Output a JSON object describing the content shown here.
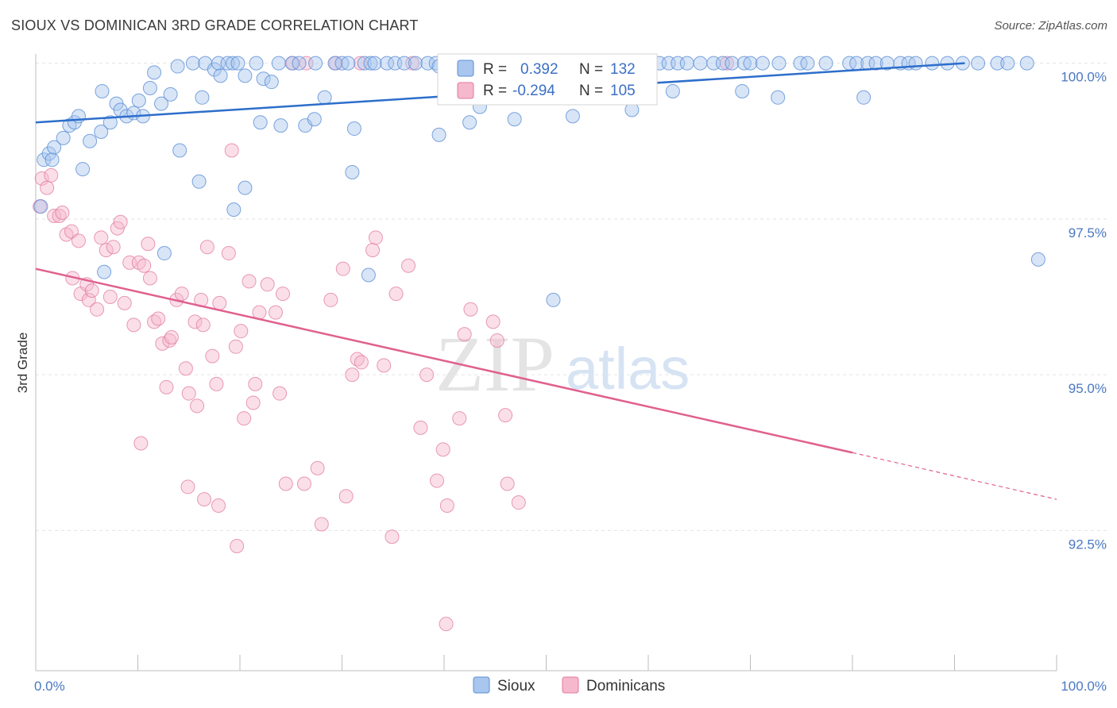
{
  "header": {
    "title": "SIOUX VS DOMINICAN 3RD GRADE CORRELATION CHART",
    "source": "Source: ZipAtlas.com"
  },
  "watermark": {
    "zip": "ZIP",
    "atlas": "atlas"
  },
  "legend_box": {
    "r_label": "R =",
    "n_label": "N =",
    "rows": [
      {
        "r": "0.392",
        "n": "132"
      },
      {
        "r": "-0.294",
        "n": "105"
      }
    ]
  },
  "bottom_legend": [
    "Sioux",
    "Dominicans"
  ],
  "chart_data": {
    "type": "scatter",
    "title": "SIOUX VS DOMINICAN 3RD GRADE CORRELATION CHART",
    "xlabel": "",
    "ylabel": "3rd Grade",
    "xlim": [
      0,
      100
    ],
    "ylim": [
      90.25,
      100.25
    ],
    "x_tick_labels": [
      "0.0%",
      "100.0%"
    ],
    "y_ticks": [
      92.5,
      95.0,
      97.5,
      100.0
    ],
    "y_tick_labels": [
      "92.5%",
      "95.0%",
      "97.5%",
      "100.0%"
    ],
    "grid": true,
    "legend_position": "top-center",
    "colors": {
      "sioux": "#5b8fd6",
      "sioux_fill": "#a9c6ee",
      "sioux_line": "#2d6ecb",
      "dominicans": "#e07aa0",
      "dominicans_fill": "#f6b8cc",
      "dominicans_line": "#e0608e"
    },
    "series": [
      {
        "name": "Sioux",
        "r": 0.392,
        "n": 132,
        "trend": {
          "x": [
            0,
            91
          ],
          "y": [
            99.05,
            100.0
          ]
        },
        "points": [
          [
            0.5,
            97.7
          ],
          [
            0.8,
            98.45
          ],
          [
            1.3,
            98.55
          ],
          [
            1.6,
            98.45
          ],
          [
            1.8,
            98.65
          ],
          [
            2.7,
            98.8
          ],
          [
            3.3,
            99.0
          ],
          [
            3.8,
            99.05
          ],
          [
            4.2,
            99.15
          ],
          [
            4.6,
            98.3
          ],
          [
            5.3,
            98.75
          ],
          [
            6.5,
            99.55
          ],
          [
            6.4,
            98.9
          ],
          [
            7.3,
            99.05
          ],
          [
            7.9,
            99.35
          ],
          [
            8.3,
            99.25
          ],
          [
            8.9,
            99.15
          ],
          [
            9.6,
            99.2
          ],
          [
            10.1,
            99.4
          ],
          [
            10.5,
            99.15
          ],
          [
            11.2,
            99.6
          ],
          [
            11.6,
            99.85
          ],
          [
            12.3,
            99.35
          ],
          [
            13.2,
            99.5
          ],
          [
            13.9,
            99.95
          ],
          [
            14.1,
            98.6
          ],
          [
            15.4,
            100.0
          ],
          [
            16.3,
            99.45
          ],
          [
            16.6,
            100.0
          ],
          [
            17.5,
            99.9
          ],
          [
            17.9,
            100.0
          ],
          [
            18.1,
            99.8
          ],
          [
            18.8,
            100.0
          ],
          [
            19.3,
            100.0
          ],
          [
            19.8,
            100.0
          ],
          [
            20.5,
            99.8
          ],
          [
            21.6,
            100.0
          ],
          [
            22.3,
            99.75
          ],
          [
            23.1,
            99.7
          ],
          [
            23.8,
            100.0
          ],
          [
            25.1,
            100.0
          ],
          [
            25.8,
            100.0
          ],
          [
            26.4,
            99.0
          ],
          [
            27.4,
            100.0
          ],
          [
            28.3,
            99.45
          ],
          [
            29.3,
            100.0
          ],
          [
            30.0,
            100.0
          ],
          [
            30.6,
            100.0
          ],
          [
            31.2,
            98.95
          ],
          [
            32.2,
            100.0
          ],
          [
            32.8,
            100.0
          ],
          [
            33.2,
            100.0
          ],
          [
            34.4,
            100.0
          ],
          [
            35.2,
            100.0
          ],
          [
            36.1,
            100.0
          ],
          [
            37.2,
            100.0
          ],
          [
            38.4,
            100.0
          ],
          [
            39.2,
            100.0
          ],
          [
            39.5,
            99.95
          ],
          [
            40.1,
            100.0
          ],
          [
            40.9,
            100.0
          ],
          [
            41.5,
            100.0
          ],
          [
            42.4,
            100.0
          ],
          [
            43.7,
            100.0
          ],
          [
            44.4,
            100.0
          ],
          [
            45.1,
            100.0
          ],
          [
            45.9,
            100.0
          ],
          [
            47.2,
            100.0
          ],
          [
            47.8,
            100.0
          ],
          [
            48.5,
            100.0
          ],
          [
            49.1,
            100.0
          ],
          [
            49.9,
            100.0
          ],
          [
            50.7,
            100.0
          ],
          [
            51.5,
            100.0
          ],
          [
            52.1,
            100.0
          ],
          [
            53.3,
            100.0
          ],
          [
            54.1,
            100.0
          ],
          [
            55.0,
            100.0
          ],
          [
            55.8,
            100.0
          ],
          [
            56.6,
            100.0
          ],
          [
            57.2,
            100.0
          ],
          [
            58.4,
            100.0
          ],
          [
            59.3,
            100.0
          ],
          [
            60.2,
            100.0
          ],
          [
            61.1,
            100.0
          ],
          [
            62.0,
            100.0
          ],
          [
            62.9,
            100.0
          ],
          [
            63.8,
            100.0
          ],
          [
            65.1,
            100.0
          ],
          [
            66.4,
            100.0
          ],
          [
            67.3,
            100.0
          ],
          [
            68.2,
            100.0
          ],
          [
            69.4,
            100.0
          ],
          [
            70.0,
            100.0
          ],
          [
            71.2,
            100.0
          ],
          [
            72.8,
            100.0
          ],
          [
            74.9,
            100.0
          ],
          [
            75.6,
            100.0
          ],
          [
            77.4,
            100.0
          ],
          [
            79.7,
            100.0
          ],
          [
            80.4,
            100.0
          ],
          [
            81.5,
            100.0
          ],
          [
            82.3,
            100.0
          ],
          [
            83.4,
            100.0
          ],
          [
            84.7,
            100.0
          ],
          [
            85.5,
            100.0
          ],
          [
            86.2,
            100.0
          ],
          [
            87.8,
            100.0
          ],
          [
            89.3,
            100.0
          ],
          [
            90.8,
            100.0
          ],
          [
            92.3,
            100.0
          ],
          [
            94.2,
            100.0
          ],
          [
            95.2,
            100.0
          ],
          [
            97.1,
            100.0
          ],
          [
            22.0,
            99.05
          ],
          [
            24.0,
            99.0
          ],
          [
            27.3,
            99.1
          ],
          [
            31.0,
            98.25
          ],
          [
            16.0,
            98.1
          ],
          [
            20.5,
            98.0
          ],
          [
            19.4,
            97.65
          ],
          [
            12.6,
            96.95
          ],
          [
            6.7,
            96.65
          ],
          [
            32.6,
            96.6
          ],
          [
            50.7,
            96.2
          ],
          [
            43.5,
            99.3
          ],
          [
            46.9,
            99.1
          ],
          [
            42.5,
            99.05
          ],
          [
            52.6,
            99.15
          ],
          [
            53.8,
            99.45
          ],
          [
            62.4,
            99.55
          ],
          [
            58.4,
            99.25
          ],
          [
            69.2,
            99.55
          ],
          [
            72.7,
            99.45
          ],
          [
            81.1,
            99.45
          ],
          [
            98.2,
            96.85
          ],
          [
            39.5,
            98.85
          ],
          [
            48.7,
            99.5
          ]
        ]
      },
      {
        "name": "Dominicans",
        "r": -0.294,
        "n": 105,
        "trend": {
          "x": [
            0,
            80
          ],
          "y": [
            96.7,
            93.75
          ]
        },
        "trend_dashed": {
          "x": [
            80,
            100
          ],
          "y": [
            93.75,
            93.0
          ]
        },
        "points": [
          [
            0.4,
            97.7
          ],
          [
            0.6,
            98.15
          ],
          [
            1.1,
            98.0
          ],
          [
            1.5,
            98.2
          ],
          [
            1.8,
            97.55
          ],
          [
            2.3,
            97.55
          ],
          [
            2.6,
            97.6
          ],
          [
            3.0,
            97.25
          ],
          [
            3.5,
            97.3
          ],
          [
            3.6,
            96.55
          ],
          [
            4.2,
            97.15
          ],
          [
            4.4,
            96.3
          ],
          [
            5.0,
            96.45
          ],
          [
            5.2,
            96.2
          ],
          [
            5.5,
            96.35
          ],
          [
            6.0,
            96.05
          ],
          [
            6.4,
            97.2
          ],
          [
            6.9,
            97.0
          ],
          [
            7.3,
            96.25
          ],
          [
            7.6,
            97.05
          ],
          [
            8.0,
            97.35
          ],
          [
            8.3,
            97.45
          ],
          [
            8.7,
            96.15
          ],
          [
            9.2,
            96.8
          ],
          [
            9.6,
            95.8
          ],
          [
            10.1,
            96.8
          ],
          [
            10.6,
            96.75
          ],
          [
            11.0,
            97.1
          ],
          [
            11.2,
            96.55
          ],
          [
            11.6,
            95.85
          ],
          [
            12.0,
            95.9
          ],
          [
            12.4,
            95.5
          ],
          [
            12.8,
            94.8
          ],
          [
            13.1,
            95.55
          ],
          [
            13.3,
            95.6
          ],
          [
            13.8,
            96.2
          ],
          [
            14.3,
            96.3
          ],
          [
            14.7,
            95.1
          ],
          [
            15.0,
            94.7
          ],
          [
            15.6,
            95.85
          ],
          [
            15.8,
            94.5
          ],
          [
            16.2,
            96.2
          ],
          [
            16.4,
            95.8
          ],
          [
            16.8,
            97.05
          ],
          [
            17.3,
            95.3
          ],
          [
            17.7,
            94.85
          ],
          [
            18.0,
            96.15
          ],
          [
            18.9,
            96.95
          ],
          [
            19.2,
            98.6
          ],
          [
            19.6,
            95.45
          ],
          [
            20.4,
            94.3
          ],
          [
            20.9,
            96.5
          ],
          [
            21.3,
            94.55
          ],
          [
            21.5,
            94.85
          ],
          [
            21.9,
            96.0
          ],
          [
            22.7,
            96.45
          ],
          [
            23.5,
            96.0
          ],
          [
            23.9,
            94.7
          ],
          [
            24.2,
            96.3
          ],
          [
            24.5,
            93.25
          ],
          [
            26.3,
            93.25
          ],
          [
            27.6,
            93.5
          ],
          [
            28.0,
            92.6
          ],
          [
            28.9,
            96.2
          ],
          [
            30.1,
            96.7
          ],
          [
            30.4,
            93.05
          ],
          [
            31.0,
            95.0
          ],
          [
            31.5,
            95.25
          ],
          [
            31.9,
            95.2
          ],
          [
            33.0,
            97.0
          ],
          [
            33.3,
            97.2
          ],
          [
            34.1,
            95.15
          ],
          [
            35.3,
            96.3
          ],
          [
            36.5,
            96.75
          ],
          [
            37.7,
            94.15
          ],
          [
            38.3,
            95.0
          ],
          [
            39.3,
            93.3
          ],
          [
            39.9,
            93.8
          ],
          [
            40.3,
            92.9
          ],
          [
            41.5,
            94.3
          ],
          [
            42.0,
            95.65
          ],
          [
            42.6,
            96.05
          ],
          [
            44.8,
            95.85
          ],
          [
            45.2,
            95.55
          ],
          [
            46.0,
            94.35
          ],
          [
            46.2,
            93.25
          ],
          [
            47.3,
            92.95
          ],
          [
            14.9,
            93.2
          ],
          [
            16.5,
            93.0
          ],
          [
            17.9,
            92.9
          ],
          [
            19.7,
            92.25
          ],
          [
            10.3,
            93.9
          ],
          [
            34.9,
            92.4
          ],
          [
            40.2,
            91.0
          ],
          [
            20.1,
            95.7
          ],
          [
            25.2,
            100.0
          ],
          [
            26.5,
            100.0
          ],
          [
            29.4,
            100.0
          ],
          [
            31.8,
            100.0
          ],
          [
            36.9,
            100.0
          ],
          [
            41.8,
            100.0
          ],
          [
            44.7,
            100.0
          ],
          [
            47.9,
            100.0
          ],
          [
            50.3,
            100.0
          ],
          [
            53.6,
            100.0
          ],
          [
            58.8,
            100.0
          ],
          [
            67.7,
            100.0
          ]
        ]
      }
    ]
  }
}
